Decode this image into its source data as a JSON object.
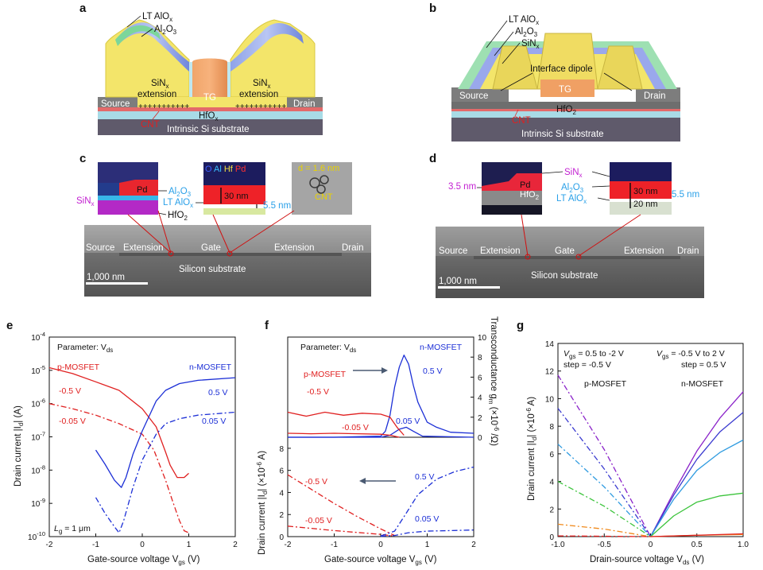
{
  "colors": {
    "red": "#e02020",
    "blue": "#1c2fd6",
    "gray": "#6b6b6b"
  },
  "panel_a": {
    "label": "a",
    "lt_alox": "LT AlO",
    "lt_alox_sub": "x",
    "al2o3_a": "Al",
    "al2o3_b": "2",
    "al2o3_c": "O",
    "al2o3_d": "3",
    "sinx": "SiN",
    "sinx_sub": "x",
    "extension": "extension",
    "tg": "TG",
    "hfox": "HfO",
    "hfox_sub": "x",
    "source": "Source",
    "drain": "Drain",
    "cnt": "CNT",
    "substrate": "Intrinsic Si substrate",
    "plus_row": "+++++++++++"
  },
  "panel_b": {
    "label": "b",
    "lt_alox": "LT AlO",
    "lt_alox_sub": "x",
    "al2o3": "Al",
    "al2o3_sub1": "2",
    "al2o3_o": "O",
    "al2o3_sub2": "3",
    "sinx": "SiN",
    "sinx_sub": "x",
    "dipole": "Interface dipole",
    "tg": "TG",
    "hfo2": "HfO",
    "hfo2_sub": "2",
    "source": "Source",
    "drain": "Drain",
    "cnt": "CNT",
    "substrate": "Intrinsic Si substrate"
  },
  "panel_c": {
    "label": "c",
    "pd": "Pd",
    "sinx": "SiN",
    "sinx_sub": "x",
    "al2o3": "Al",
    "al2o3_sub1": "2",
    "al2o3_o": "O",
    "al2o3_sub2": "3",
    "lt_alox": "LT AlO",
    "lt_alox_sub": "x",
    "hfo2": "HfO",
    "hfo2_sub": "2",
    "legend_o": "O",
    "legend_al": "Al",
    "legend_hf": "Hf",
    "legend_pd": "Pd",
    "thick_30": "30 nm",
    "thick_5": "5.5 nm",
    "d_label": "d = 1.6 nm",
    "cnt": "CNT",
    "source": "Source",
    "extension1": "Extension",
    "gate": "Gate",
    "extension2": "Extension",
    "drain": "Drain",
    "scale": "1,000 nm",
    "substrate": "Silicon substrate"
  },
  "panel_d": {
    "label": "d",
    "thick_35": "3.5 nm",
    "pd": "Pd",
    "hfo2": "HfO",
    "hfo2_sub": "2",
    "sinx": "SiN",
    "sinx_sub": "x",
    "al2o3": "Al",
    "al2o3_sub1": "2",
    "al2o3_o": "O",
    "al2o3_sub2": "3",
    "lt_alox": "LT AlO",
    "lt_alox_sub": "x",
    "thick_30": "30 nm",
    "thick_55": "5.5 nm",
    "thick_20": "20 nm",
    "source": "Source",
    "extension1": "Extension",
    "gate": "Gate",
    "extension2": "Extension",
    "drain": "Drain",
    "scale": "1,000 nm",
    "substrate": "Silicon substrate"
  },
  "panel_e": {
    "label": "e",
    "param": "Parameter: V",
    "param_sub": "ds",
    "pmos": "p-MOSFET",
    "nmos": "n-MOSFET",
    "v1": "-0.5 V",
    "v2": "-0.05 V",
    "v3": "0.5 V",
    "v4": "0.05 V",
    "lg": "L",
    "lg_sub": "g",
    "lg_val": " = 1 μm",
    "ylabel": "Drain current |I",
    "ylabel_sub": "d",
    "ylabel_end": "| (A)",
    "xlabel": "Gate-source voltage V",
    "xlabel_sub": "gs",
    "xlabel_end": " (V)",
    "yticks": [
      "10",
      "10",
      "10",
      "10",
      "10",
      "10",
      "10"
    ],
    "yexp": [
      "-4",
      "-5",
      "-6",
      "-7",
      "-8",
      "-9",
      "-10"
    ],
    "xticks": [
      "-2",
      "-1",
      "0",
      "1",
      "2"
    ]
  },
  "panel_f": {
    "label": "f",
    "param": "Parameter: V",
    "param_sub": "ds",
    "nmos": "n-MOSFET",
    "pmos": "p-MOSFET",
    "v1": "0.5 V",
    "v2": "-0.5 V",
    "v3": "0.05 V",
    "v4": "-0.05 V",
    "v5": "-0.5 V",
    "v6": "0.5 V",
    "v7": "-0.05 V",
    "v8": "0.05 V",
    "ylabel_top": "Transconductance g",
    "ylabel_top_sub": "m",
    "ylabel_top_end": " (×10",
    "ylabel_top_exp": "-6",
    "ylabel_top_end2": " /Ω)",
    "ylabel_bot": "Drain current |I",
    "ylabel_bot_sub": "d",
    "ylabel_bot_end": "| (×10",
    "ylabel_bot_exp": "-6",
    "ylabel_bot_end2": " A)",
    "xlabel": "Gate-source voltage V",
    "xlabel_sub": "gs",
    "xlabel_end": " (V)",
    "yticks_top": [
      "10",
      "8",
      "6",
      "4",
      "2",
      "0"
    ],
    "yticks_bot": [
      "8",
      "6",
      "4",
      "2",
      "0"
    ],
    "xticks": [
      "-2",
      "-1",
      "0",
      "1",
      "2"
    ]
  },
  "panel_g": {
    "label": "g",
    "vgs_left": "V",
    "vgs_left_sub": "gs",
    "vgs_left_end": " = 0.5 to -2 V",
    "step_left": "step = -0.5 V",
    "vgs_right": "V",
    "vgs_right_sub": "gs",
    "vgs_right_end": " = -0.5 V to 2 V",
    "step_right": "step = 0.5 V",
    "pmos": "p-MOSFET",
    "nmos": "n-MOSFET",
    "ylabel": "Drain current |I",
    "ylabel_sub": "d",
    "ylabel_end": "| (×10",
    "ylabel_exp": "-6",
    "ylabel_end2": " A)",
    "xlabel": "Drain-source voltage V",
    "xlabel_sub": "ds",
    "xlabel_end": " (V)",
    "yticks": [
      "14",
      "12",
      "10",
      "8",
      "6",
      "4",
      "2",
      "0"
    ],
    "xticks": [
      "-1.0",
      "-0.5",
      "0",
      "0.5",
      "1.0"
    ]
  },
  "chart_data": [
    {
      "panel": "e",
      "type": "line",
      "yscale": "log",
      "xlabel": "Gate-source voltage Vgs (V)",
      "ylabel": "Drain current |Id| (A)",
      "xlim": [
        -2,
        2
      ],
      "ylim": [
        1e-10,
        0.0001
      ],
      "series": [
        {
          "name": "p-MOSFET Vds = -0.5 V",
          "color": "#e02020",
          "dash": "solid",
          "x": [
            -2,
            -1.5,
            -1,
            -0.5,
            0,
            0.3,
            0.5,
            0.6,
            0.75,
            0.9,
            1.0
          ],
          "y": [
            1.2e-05,
            8e-06,
            4.5e-06,
            2.5e-06,
            7e-07,
            2e-07,
            3.5e-08,
            1.4e-08,
            6e-09,
            6e-09,
            8e-09
          ]
        },
        {
          "name": "p-MOSFET Vds = -0.05 V",
          "color": "#e02020",
          "dash": "dashdot",
          "x": [
            -2,
            -1.5,
            -1,
            -0.5,
            0,
            0.25,
            0.5,
            0.65,
            0.8,
            0.9,
            1.0
          ],
          "y": [
            1e-06,
            7e-07,
            4.5e-07,
            2.5e-07,
            1.2e-07,
            4e-08,
            5e-09,
            1.2e-09,
            3e-10,
            1.5e-10,
            1.3e-10
          ]
        },
        {
          "name": "n-MOSFET Vds = 0.5 V",
          "color": "#1c2fd6",
          "dash": "solid",
          "x": [
            -1,
            -0.8,
            -0.6,
            -0.45,
            -0.35,
            -0.2,
            0,
            0.3,
            0.5,
            0.8,
            1.2,
            2
          ],
          "y": [
            4e-08,
            1.5e-08,
            5e-09,
            3e-09,
            6e-09,
            3e-08,
            1.5e-07,
            1.2e-06,
            2.5e-06,
            4e-06,
            5e-06,
            6e-06
          ]
        },
        {
          "name": "n-MOSFET Vds = 0.05 V",
          "color": "#1c2fd6",
          "dash": "dashdot",
          "x": [
            -1,
            -0.8,
            -0.6,
            -0.5,
            -0.4,
            -0.2,
            0,
            0.3,
            0.5,
            0.8,
            1.2,
            2
          ],
          "y": [
            1.5e-09,
            5e-10,
            2e-10,
            1.3e-10,
            3e-10,
            3e-09,
            2e-08,
            1.2e-07,
            2.5e-07,
            3.5e-07,
            4.5e-07,
            5.5e-07
          ]
        }
      ]
    },
    {
      "panel": "f-top",
      "type": "line",
      "ylabel": "Transconductance gm (×10^-6 /Ω)",
      "xlim": [
        -2,
        2
      ],
      "ylim": [
        0,
        10
      ],
      "series": [
        {
          "name": "n-MOSFET 0.5 V",
          "color": "#1c2fd6",
          "x": [
            -2,
            -1,
            0,
            0.1,
            0.2,
            0.3,
            0.4,
            0.5,
            0.6,
            0.7,
            0.8,
            1.0,
            1.2,
            1.5,
            2
          ],
          "y": [
            0,
            0,
            0.1,
            0.6,
            2.2,
            5.0,
            7.0,
            8.2,
            7.3,
            5.2,
            3.5,
            1.5,
            1.0,
            0.5,
            0.4
          ]
        },
        {
          "name": "n-MOSFET 0.05 V",
          "color": "#1c2fd6",
          "x": [
            -2,
            0,
            0.2,
            0.4,
            0.55,
            0.7,
            0.9,
            2
          ],
          "y": [
            0,
            0,
            0.2,
            0.8,
            1.0,
            0.6,
            0.1,
            0
          ]
        },
        {
          "name": "p-MOSFET -0.5 V",
          "color": "#e02020",
          "x": [
            -2,
            -1.6,
            -1.2,
            -0.8,
            -0.4,
            0,
            0.2,
            0.35,
            0.5
          ],
          "y": [
            2.5,
            2.1,
            2.5,
            2.2,
            2.4,
            2.3,
            2.0,
            1.0,
            0.2
          ]
        },
        {
          "name": "p-MOSFET -0.05 V",
          "color": "#e02020",
          "x": [
            -2,
            -1.5,
            -1,
            -0.5,
            0,
            0.2,
            0.4
          ],
          "y": [
            0.4,
            0.35,
            0.4,
            0.35,
            0.3,
            0.2,
            0
          ]
        }
      ]
    },
    {
      "panel": "f-bottom",
      "type": "line",
      "ylabel": "Drain current |Id| (×10^-6 A)",
      "xlim": [
        -2,
        2
      ],
      "ylim": [
        0,
        9
      ],
      "series": [
        {
          "name": "p-MOSFET -0.5 V",
          "color": "#e02020",
          "dash": "dashdot",
          "x": [
            -2,
            -1.5,
            -1,
            -0.5,
            0,
            0.3
          ],
          "y": [
            5.6,
            4.3,
            3.0,
            1.8,
            0.7,
            0.1
          ]
        },
        {
          "name": "p-MOSFET -0.05 V",
          "color": "#e02020",
          "dash": "dashdot",
          "x": [
            -2,
            -1,
            0,
            0.3
          ],
          "y": [
            0.95,
            0.55,
            0.2,
            0.05
          ]
        },
        {
          "name": "n-MOSFET 0.5 V",
          "color": "#1c2fd6",
          "dash": "dashdot",
          "x": [
            0,
            0.3,
            0.5,
            0.8,
            1.2,
            1.6,
            2
          ],
          "y": [
            0.05,
            0.5,
            1.8,
            3.8,
            5.2,
            5.9,
            6.3
          ]
        },
        {
          "name": "n-MOSFET 0.05 V",
          "color": "#1c2fd6",
          "dash": "dashdot",
          "x": [
            0,
            0.3,
            0.6,
            1.0,
            1.5,
            2
          ],
          "y": [
            0.02,
            0.1,
            0.35,
            0.5,
            0.55,
            0.6
          ]
        }
      ]
    },
    {
      "panel": "g",
      "type": "line",
      "xlabel": "Drain-source voltage Vds (V)",
      "ylabel": "Drain current |Id| (×10^-6 A)",
      "xlim": [
        -1,
        1
      ],
      "ylim": [
        0,
        14
      ],
      "series": [
        {
          "name": "p Vgs = -2 V",
          "color": "#8a22c9",
          "dash": "dashdot",
          "x": [
            -1,
            -0.5,
            0
          ],
          "y": [
            11.7,
            6.3,
            0
          ]
        },
        {
          "name": "p Vgs = -1.5 V",
          "color": "#3b3bd0",
          "dash": "dashdot",
          "x": [
            -1,
            -0.5,
            0
          ],
          "y": [
            9.3,
            4.9,
            0
          ]
        },
        {
          "name": "p Vgs = -1 V",
          "color": "#2f9be0",
          "dash": "dashdot",
          "x": [
            -1,
            -0.5,
            0
          ],
          "y": [
            6.7,
            3.6,
            0
          ]
        },
        {
          "name": "p Vgs = -0.5 V",
          "color": "#3cc43c",
          "dash": "dashdot",
          "x": [
            -1,
            -0.5,
            0
          ],
          "y": [
            4.0,
            2.2,
            0
          ]
        },
        {
          "name": "p Vgs = 0 V",
          "color": "#f08a1c",
          "dash": "dashdot",
          "x": [
            -1,
            -0.5,
            0
          ],
          "y": [
            0.9,
            0.55,
            0
          ]
        },
        {
          "name": "p Vgs = 0.5 V",
          "color": "#e02020",
          "dash": "dashdot",
          "x": [
            -1,
            0
          ],
          "y": [
            0.05,
            0
          ]
        },
        {
          "name": "n Vgs = 2 V",
          "color": "#8a22c9",
          "dash": "solid",
          "x": [
            0,
            0.25,
            0.5,
            0.75,
            1.0
          ],
          "y": [
            0,
            3.2,
            6.2,
            8.6,
            10.5
          ]
        },
        {
          "name": "n Vgs = 1.5 V",
          "color": "#3b3bd0",
          "dash": "solid",
          "x": [
            0,
            0.25,
            0.5,
            0.75,
            1.0
          ],
          "y": [
            0,
            3.0,
            5.6,
            7.6,
            9.0
          ]
        },
        {
          "name": "n Vgs = 1 V",
          "color": "#2f9be0",
          "dash": "solid",
          "x": [
            0,
            0.25,
            0.5,
            0.75,
            1.0
          ],
          "y": [
            0,
            2.7,
            4.8,
            6.1,
            7.0
          ]
        },
        {
          "name": "n Vgs = 0.5 V",
          "color": "#3cc43c",
          "dash": "solid",
          "x": [
            0,
            0.25,
            0.5,
            0.75,
            1.0
          ],
          "y": [
            0,
            1.5,
            2.5,
            2.95,
            3.15
          ]
        },
        {
          "name": "n Vgs = 0 V",
          "color": "#f08a1c",
          "dash": "solid",
          "x": [
            0,
            0.5,
            1.0
          ],
          "y": [
            0,
            0.1,
            0.15
          ]
        },
        {
          "name": "n Vgs = -0.5 V",
          "color": "#e02020",
          "dash": "solid",
          "x": [
            0,
            1.0
          ],
          "y": [
            0,
            0.2
          ]
        }
      ]
    }
  ]
}
